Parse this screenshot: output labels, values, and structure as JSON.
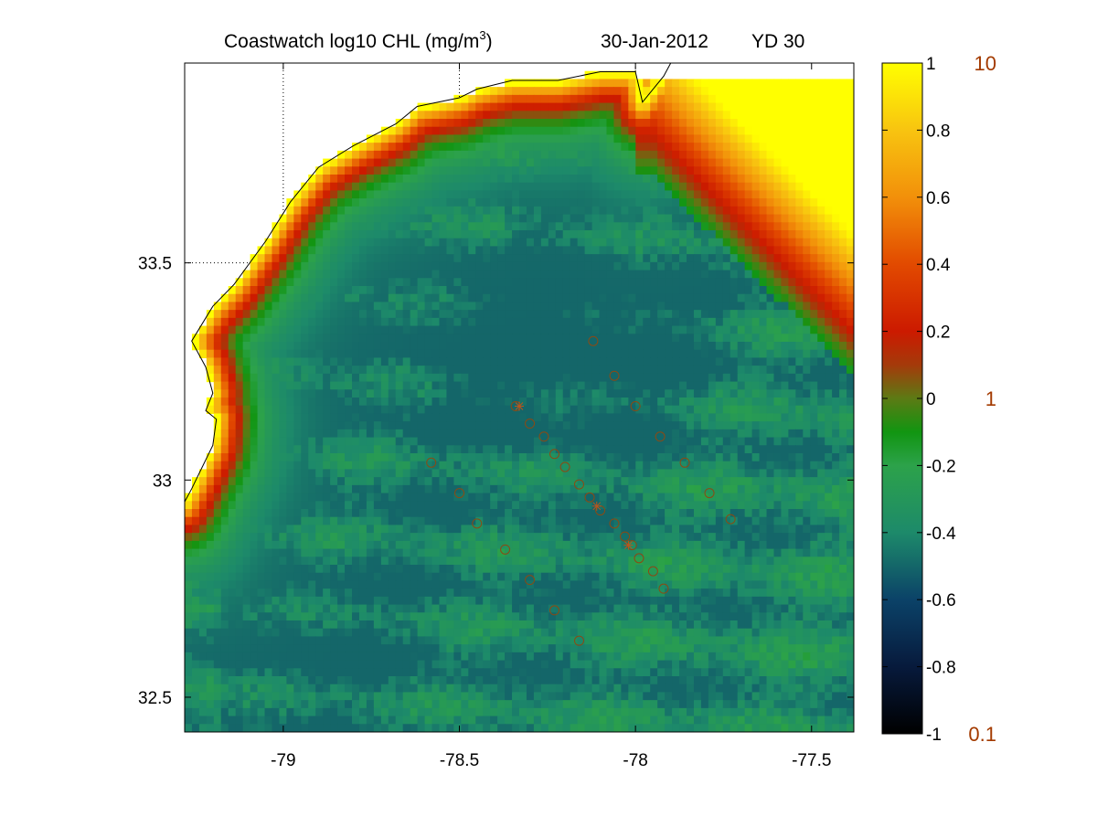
{
  "header": {
    "title_main": "Coastwatch  log10  CHL (mg/m",
    "title_sup": "3",
    "title_close": ")",
    "date": "30-Jan-2012",
    "yearday": "YD 30"
  },
  "chart_data": {
    "type": "heatmap",
    "xlim": [
      -79.28,
      -77.38
    ],
    "ylim": [
      32.42,
      33.96
    ],
    "x_ticks": [
      -79,
      -78.5,
      -78,
      -77.5
    ],
    "y_ticks": [
      32.5,
      33,
      33.5
    ],
    "x_tick_labels": [
      "-79",
      "-78.5",
      "-78",
      "-77.5"
    ],
    "y_tick_labels": [
      "32.5",
      "33",
      "33.5"
    ],
    "grid_dotted": {
      "x": [
        -79,
        -78.5,
        -78
      ],
      "y": [
        33.5
      ]
    },
    "color_range": [
      -1,
      1
    ],
    "colorbar": {
      "ticks": [
        1,
        0.8,
        0.6,
        0.4,
        0.2,
        0,
        -0.2,
        -0.4,
        -0.6,
        -0.8,
        -1
      ],
      "tick_labels": [
        "1",
        "0.8",
        "0.6",
        "0.4",
        "0.2",
        "0",
        "-0.2",
        "-0.4",
        "-0.6",
        "-0.8",
        "-1"
      ],
      "secondary_ticks": [
        1,
        0,
        -1
      ],
      "secondary_labels": [
        "10",
        "1",
        "0.1"
      ],
      "secondary_color": "#a33a00"
    },
    "colormap": [
      {
        "v": -1.0,
        "color": "#000000"
      },
      {
        "v": -0.8,
        "color": "#071a3c"
      },
      {
        "v": -0.6,
        "color": "#0b4268"
      },
      {
        "v": -0.4,
        "color": "#1d8a6a"
      },
      {
        "v": -0.2,
        "color": "#2ca24a"
      },
      {
        "v": -0.1,
        "color": "#119511"
      },
      {
        "v": 0.0,
        "color": "#5c7a14"
      },
      {
        "v": 0.1,
        "color": "#a43a0a"
      },
      {
        "v": 0.2,
        "color": "#cc1a00"
      },
      {
        "v": 0.4,
        "color": "#e24a00"
      },
      {
        "v": 0.6,
        "color": "#f2900a"
      },
      {
        "v": 0.8,
        "color": "#f8c410"
      },
      {
        "v": 1.0,
        "color": "#ffff00"
      }
    ],
    "coastline": [
      [
        -79.28,
        32.95
      ],
      [
        -79.26,
        32.98
      ],
      [
        -79.2,
        33.08
      ],
      [
        -79.19,
        33.14
      ],
      [
        -79.22,
        33.16
      ],
      [
        -79.2,
        33.2
      ],
      [
        -79.22,
        33.26
      ],
      [
        -79.26,
        33.32
      ],
      [
        -79.2,
        33.4
      ],
      [
        -79.14,
        33.45
      ],
      [
        -79.05,
        33.55
      ],
      [
        -78.98,
        33.64
      ],
      [
        -78.9,
        33.72
      ],
      [
        -78.8,
        33.77
      ],
      [
        -78.68,
        33.82
      ],
      [
        -78.62,
        33.86
      ],
      [
        -78.5,
        33.88
      ],
      [
        -78.45,
        33.9
      ],
      [
        -78.35,
        33.92
      ],
      [
        -78.22,
        33.92
      ],
      [
        -78.1,
        33.94
      ],
      [
        -78.0,
        33.94
      ],
      [
        -77.98,
        33.87
      ],
      [
        -77.92,
        33.93
      ],
      [
        -77.9,
        33.96
      ]
    ],
    "ship_stations": [
      [
        -78.58,
        33.04
      ],
      [
        -78.5,
        32.97
      ],
      [
        -78.45,
        32.9
      ],
      [
        -78.37,
        32.84
      ],
      [
        -78.3,
        32.77
      ],
      [
        -78.34,
        33.17
      ],
      [
        -78.3,
        33.13
      ],
      [
        -78.26,
        33.1
      ],
      [
        -78.23,
        33.06
      ],
      [
        -78.2,
        33.03
      ],
      [
        -78.16,
        32.99
      ],
      [
        -78.13,
        32.96
      ],
      [
        -78.1,
        32.93
      ],
      [
        -78.06,
        32.9
      ],
      [
        -78.03,
        32.87
      ],
      [
        -78.01,
        32.85
      ],
      [
        -77.99,
        32.82
      ],
      [
        -77.95,
        32.79
      ],
      [
        -77.92,
        32.75
      ],
      [
        -78.23,
        32.7
      ],
      [
        -78.16,
        32.63
      ],
      [
        -78.12,
        33.32
      ],
      [
        -78.06,
        33.24
      ],
      [
        -78.0,
        33.17
      ],
      [
        -77.93,
        33.1
      ],
      [
        -77.86,
        33.04
      ],
      [
        -77.79,
        32.97
      ],
      [
        -77.73,
        32.91
      ]
    ],
    "cross_markers": [
      [
        -78.33,
        33.17
      ],
      [
        -78.11,
        32.94
      ],
      [
        -78.02,
        32.85
      ]
    ]
  }
}
